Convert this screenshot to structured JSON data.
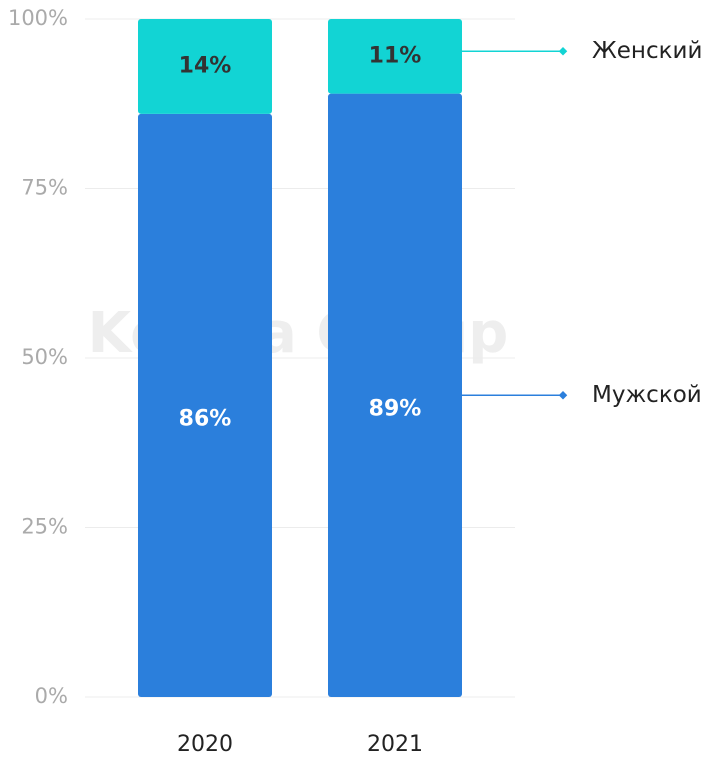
{
  "chart_data": {
    "type": "stacked_bar",
    "watermark": "Kolesa Group",
    "categories": [
      "2020",
      "2021"
    ],
    "series": [
      {
        "name": "Мужской",
        "color": "#2b7fdc",
        "label_color": "#ffffff",
        "values": [
          86,
          89
        ],
        "value_labels": [
          "86%",
          "89%"
        ]
      },
      {
        "name": "Женский",
        "color": "#12d4d4",
        "label_color": "#333333",
        "values": [
          14,
          11
        ],
        "value_labels": [
          "14%",
          "11%"
        ]
      }
    ],
    "ylim": [
      0,
      100
    ],
    "yticks": [
      {
        "value": 0,
        "label": "0%"
      },
      {
        "value": 25,
        "label": "25%"
      },
      {
        "value": 50,
        "label": "50%"
      },
      {
        "value": 75,
        "label": "75%"
      },
      {
        "value": 100,
        "label": "100%"
      }
    ],
    "grid": true
  }
}
